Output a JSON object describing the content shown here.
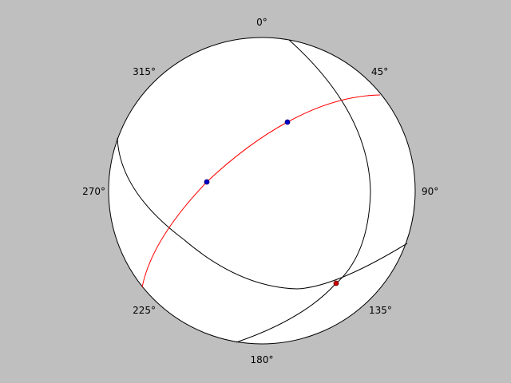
{
  "colors": {
    "background": "#bfbfbf",
    "net_fill": "#ffffff",
    "outline": "#000000",
    "plane_stroke": "#000000",
    "highlight_stroke": "#ff0000",
    "pole_blue": "#0000cc",
    "pole_red": "#cc0000"
  },
  "azimuth_labels": [
    "0°",
    "45°",
    "90°",
    "135°",
    "180°",
    "225°",
    "270°",
    "315°"
  ]
}
